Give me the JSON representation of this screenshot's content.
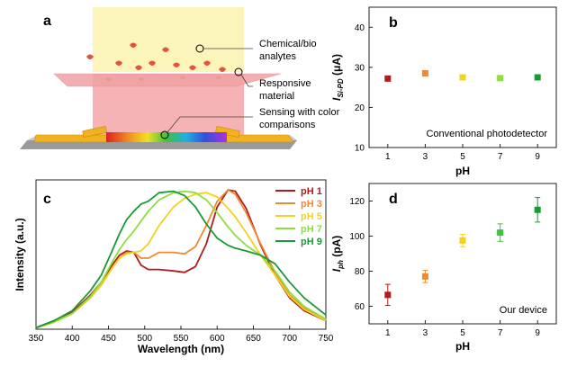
{
  "panel_a": {
    "label": "a",
    "annotations": [
      {
        "name": "chemical-bio-analytes",
        "lines": [
          "Chemical/bio",
          "analytes"
        ]
      },
      {
        "name": "responsive-material",
        "lines": [
          "Responsive",
          "material"
        ]
      },
      {
        "name": "sensing-color",
        "lines": [
          "Sensing with color",
          "comparisons"
        ]
      }
    ]
  },
  "ph_colors": {
    "pH 1": "#b01c1c",
    "pH 3": "#f08a30",
    "pH 5": "#f2d21e",
    "pH 7": "#8ede3c",
    "pH 9": "#1a9a35"
  },
  "chart_data": [
    {
      "id": "b",
      "type": "scatter",
      "panel_label": "b",
      "xlabel": "pH",
      "ylabel_main": "I",
      "ylabel_sub": "Si-PD",
      "ylabel_unit": " (μA)",
      "x": [
        1,
        3,
        5,
        7,
        9
      ],
      "x_ticks": [
        1,
        3,
        5,
        7,
        9
      ],
      "y": [
        27.2,
        28.5,
        27.5,
        27.3,
        27.5
      ],
      "ylim": [
        10,
        45
      ],
      "y_ticks": [
        10,
        20,
        30,
        40
      ],
      "point_colors": [
        "#b01c1c",
        "#f08a30",
        "#f2d21e",
        "#8ede3c",
        "#1a9a35"
      ],
      "annotation": "Conventional photodetector"
    },
    {
      "id": "c",
      "type": "line",
      "panel_label": "c",
      "xlabel": "Wavelength (nm)",
      "ylabel": "Intensity (a.u.)",
      "xlim": [
        350,
        750
      ],
      "x_ticks": [
        350,
        400,
        450,
        500,
        550,
        600,
        650,
        700,
        750
      ],
      "ylim": [
        0,
        1.05
      ],
      "legend_position": "top-right",
      "series": [
        {
          "name": "pH 1",
          "color": "#b01c1c",
          "x": [
            350,
            375,
            400,
            425,
            440,
            455,
            465,
            475,
            485,
            495,
            505,
            520,
            540,
            555,
            570,
            585,
            600,
            615,
            625,
            640,
            660,
            680,
            700,
            720,
            750
          ],
          "y": [
            0.01,
            0.06,
            0.12,
            0.24,
            0.33,
            0.45,
            0.52,
            0.55,
            0.54,
            0.45,
            0.42,
            0.42,
            0.41,
            0.4,
            0.44,
            0.6,
            0.86,
            0.98,
            0.97,
            0.85,
            0.59,
            0.38,
            0.22,
            0.13,
            0.06
          ]
        },
        {
          "name": "pH 3",
          "color": "#f08a30",
          "x": [
            350,
            375,
            400,
            425,
            440,
            455,
            465,
            475,
            485,
            495,
            505,
            520,
            540,
            555,
            570,
            585,
            600,
            615,
            625,
            640,
            660,
            680,
            700,
            720,
            750
          ],
          "y": [
            0.01,
            0.05,
            0.11,
            0.22,
            0.31,
            0.43,
            0.5,
            0.54,
            0.54,
            0.5,
            0.5,
            0.54,
            0.54,
            0.53,
            0.58,
            0.73,
            0.9,
            0.98,
            0.95,
            0.82,
            0.6,
            0.4,
            0.24,
            0.15,
            0.07
          ]
        },
        {
          "name": "pH 5",
          "color": "#f2d21e",
          "x": [
            350,
            375,
            400,
            425,
            440,
            455,
            465,
            475,
            485,
            495,
            505,
            520,
            540,
            555,
            570,
            585,
            600,
            615,
            625,
            640,
            660,
            680,
            700,
            720,
            750
          ],
          "y": [
            0.01,
            0.05,
            0.11,
            0.22,
            0.31,
            0.43,
            0.5,
            0.53,
            0.54,
            0.55,
            0.6,
            0.73,
            0.86,
            0.92,
            0.95,
            0.96,
            0.93,
            0.85,
            0.79,
            0.68,
            0.52,
            0.38,
            0.23,
            0.14,
            0.06
          ]
        },
        {
          "name": "pH 7",
          "color": "#8ede3c",
          "x": [
            350,
            375,
            400,
            425,
            440,
            455,
            465,
            475,
            485,
            495,
            505,
            520,
            540,
            555,
            570,
            585,
            600,
            615,
            625,
            640,
            660,
            680,
            700,
            720,
            750
          ],
          "y": [
            0.01,
            0.05,
            0.11,
            0.23,
            0.33,
            0.47,
            0.56,
            0.63,
            0.69,
            0.76,
            0.83,
            0.91,
            0.96,
            0.97,
            0.96,
            0.91,
            0.82,
            0.72,
            0.66,
            0.59,
            0.52,
            0.41,
            0.26,
            0.16,
            0.07
          ]
        },
        {
          "name": "pH 9",
          "color": "#1a9a35",
          "x": [
            350,
            375,
            400,
            425,
            440,
            455,
            465,
            475,
            485,
            495,
            505,
            520,
            540,
            555,
            570,
            585,
            600,
            615,
            625,
            640,
            660,
            680,
            700,
            720,
            750
          ],
          "y": [
            0.01,
            0.06,
            0.13,
            0.27,
            0.38,
            0.55,
            0.67,
            0.77,
            0.83,
            0.88,
            0.9,
            0.96,
            0.97,
            0.94,
            0.86,
            0.74,
            0.64,
            0.59,
            0.57,
            0.55,
            0.52,
            0.46,
            0.33,
            0.22,
            0.1
          ]
        }
      ]
    },
    {
      "id": "d",
      "type": "scatter",
      "panel_label": "d",
      "xlabel": "pH",
      "ylabel_main": "I",
      "ylabel_sub": "ph",
      "ylabel_unit": " (pA)",
      "x": [
        1,
        3,
        5,
        7,
        9
      ],
      "x_ticks": [
        1,
        3,
        5,
        7,
        9
      ],
      "y": [
        66.5,
        77,
        97.5,
        102,
        115
      ],
      "y_err": [
        6,
        3.5,
        3.5,
        5,
        7
      ],
      "ylim": [
        50,
        130
      ],
      "y_ticks": [
        60,
        80,
        100,
        120
      ],
      "point_colors": [
        "#b01c1c",
        "#f08a30",
        "#f2d21e",
        "#3cc43c",
        "#1a9a35"
      ],
      "annotation": "Our device"
    }
  ]
}
